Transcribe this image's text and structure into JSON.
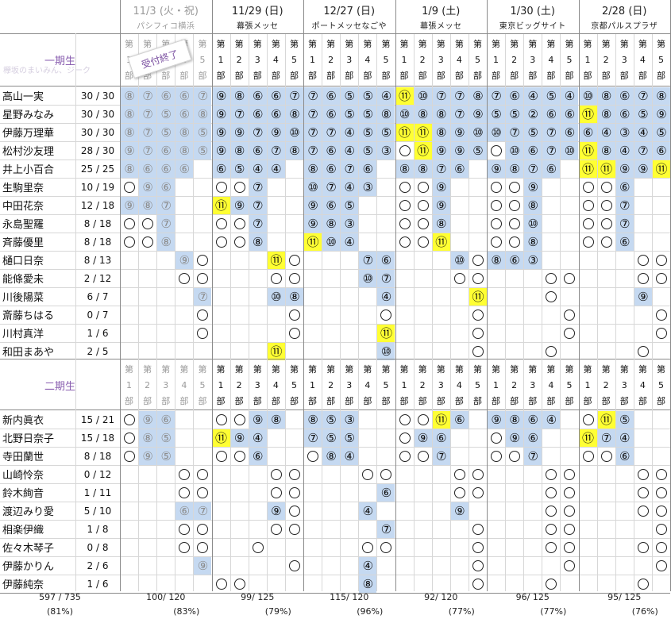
{
  "events": [
    {
      "date": "11/3 (火・祝)",
      "venue": "パシフィコ横浜",
      "past": true,
      "total": "100/ 120",
      "percent": "(83%)"
    },
    {
      "date": "11/29 (日)",
      "venue": "幕張メッセ",
      "past": false,
      "total": "99/ 125",
      "percent": "(79%)"
    },
    {
      "date": "12/27 (日)",
      "venue": "ポートメッセなごや",
      "past": false,
      "total": "115/ 120",
      "percent": "(96%)"
    },
    {
      "date": "1/9 (土)",
      "venue": "幕張メッセ",
      "past": false,
      "total": "92/ 120",
      "percent": "(77%)"
    },
    {
      "date": "1/30 (土)",
      "venue": "東京ビッグサイト",
      "past": false,
      "total": "96/ 125",
      "percent": "(77%)"
    },
    {
      "date": "2/28 (日)",
      "venue": "京都パルスプラザ",
      "past": false,
      "total": "95/ 125",
      "percent": "(76%)"
    }
  ],
  "part_label": {
    "top": "第",
    "bottom": "部"
  },
  "part_numbers": [
    "1",
    "2",
    "3",
    "4",
    "5"
  ],
  "stamp": "受付終了",
  "watermark": "欅坂のまいみん、ジーク",
  "grand_total": {
    "value": "597 / 735",
    "percent": "(81%)"
  },
  "groups": [
    {
      "label": "一期生",
      "members": [
        {
          "name": "高山一実",
          "count": "30 / 30",
          "cells": [
            "8b",
            "7b",
            "6b",
            "6b",
            "7b",
            "9b",
            "8b",
            "6b",
            "6b",
            "7b",
            "7b",
            "6b",
            "5b",
            "5b",
            "4b",
            "11y",
            "10b",
            "7b",
            "7b",
            "8b",
            "7b",
            "6b",
            "4b",
            "5b",
            "4b",
            "10b",
            "8b",
            "6b",
            "7b",
            "8b"
          ]
        },
        {
          "name": "星野みなみ",
          "count": "30 / 30",
          "cells": [
            "8b",
            "7b",
            "5b",
            "6b",
            "8b",
            "9b",
            "7b",
            "6b",
            "6b",
            "8b",
            "7b",
            "6b",
            "5b",
            "5b",
            "8b",
            "10b",
            "8b",
            "8b",
            "7b",
            "9b",
            "5b",
            "5b",
            "2b",
            "6b",
            "6b",
            "11y",
            "8b",
            "6b",
            "5b",
            "9b"
          ]
        },
        {
          "name": "伊藤万理華",
          "count": "30 / 30",
          "cells": [
            "8b",
            "7b",
            "5b",
            "8b",
            "5b",
            "9b",
            "9b",
            "7b",
            "9b",
            "10b",
            "7b",
            "7b",
            "4b",
            "5b",
            "5b",
            "11y",
            "11y",
            "8b",
            "9b",
            "10b",
            "10b",
            "7b",
            "5b",
            "7b",
            "6b",
            "6b",
            "4b",
            "3b",
            "4b",
            "5b"
          ]
        },
        {
          "name": "松村沙友理",
          "count": "28 / 30",
          "cells": [
            "9b",
            "7b",
            "6b",
            "8b",
            "5b",
            "9b",
            "8b",
            "6b",
            "7b",
            "8b",
            "7b",
            "6b",
            "4b",
            "5b",
            "3b",
            "o",
            "11y",
            "9b",
            "9b",
            "5b",
            "o",
            "10b",
            "6b",
            "7b",
            "10b",
            "11y",
            "8b",
            "4b",
            "7b",
            "6b"
          ]
        },
        {
          "name": "井上小百合",
          "count": "25 / 25",
          "cells": [
            "8b",
            "6b",
            "6b",
            "6b",
            "",
            "6b",
            "5b",
            "4b",
            "4b",
            "",
            "8b",
            "6b",
            "7b",
            "6b",
            "",
            "8b",
            "8b",
            "7b",
            "6b",
            "",
            "9b",
            "8b",
            "7b",
            "6b",
            "",
            "11y",
            "11y",
            "9b",
            "9b",
            "11y"
          ]
        },
        {
          "name": "生駒里奈",
          "count": "10 / 19",
          "cells": [
            "o",
            "9b",
            "6b",
            "",
            "",
            "o",
            "o",
            "7b",
            "",
            "",
            "10b",
            "7b",
            "4b",
            "3b",
            "",
            "o",
            "o",
            "9b",
            "",
            "",
            "o",
            "o",
            "9b",
            "",
            "",
            "o",
            "o",
            "6b",
            "",
            ""
          ]
        },
        {
          "name": "中田花奈",
          "count": "12 / 18",
          "cells": [
            "9b",
            "8b",
            "7b",
            "",
            "",
            "11y",
            "9b",
            "7b",
            "",
            "",
            "9b",
            "6b",
            "5b",
            "",
            "",
            "o",
            "o",
            "9b",
            "",
            "",
            "o",
            "o",
            "8b",
            "",
            "",
            "o",
            "o",
            "7b",
            "",
            ""
          ]
        },
        {
          "name": "永島聖羅",
          "count": "8 / 18",
          "cells": [
            "o",
            "o",
            "7b",
            "",
            "",
            "o",
            "o",
            "7b",
            "",
            "",
            "9b",
            "8b",
            "3b",
            "",
            "",
            "o",
            "o",
            "8b",
            "",
            "",
            "o",
            "o",
            "10b",
            "",
            "",
            "o",
            "o",
            "7b",
            "",
            ""
          ]
        },
        {
          "name": "斉藤優里",
          "count": "8 / 18",
          "cells": [
            "o",
            "o",
            "8b",
            "",
            "",
            "o",
            "o",
            "8b",
            "",
            "",
            "11y",
            "10b",
            "4b",
            "",
            "",
            "o",
            "o",
            "11y",
            "",
            "",
            "o",
            "o",
            "8b",
            "",
            "",
            "o",
            "o",
            "6b",
            "",
            ""
          ]
        },
        {
          "name": "樋口日奈",
          "count": "8 / 13",
          "cells": [
            "",
            "",
            "",
            "9b",
            "o",
            "",
            "",
            "",
            "11y",
            "o",
            "",
            "",
            "",
            "7b",
            "6b",
            "",
            "",
            "",
            "10b",
            "o",
            "8b",
            "6b",
            "3b",
            "",
            "",
            "",
            "",
            "",
            "o",
            "o"
          ]
        },
        {
          "name": "能條愛未",
          "count": "2 / 12",
          "cells": [
            "",
            "",
            "",
            "o",
            "o",
            "",
            "",
            "",
            "o",
            "o",
            "",
            "",
            "",
            "10b",
            "7b",
            "",
            "",
            "",
            "o",
            "o",
            "",
            "",
            "",
            "o",
            "o",
            "",
            "",
            "",
            "o",
            "o"
          ]
        },
        {
          "name": "川後陽菜",
          "count": "6 / 7",
          "cells": [
            "",
            "",
            "",
            "",
            "7b",
            "",
            "",
            "",
            "10b",
            "8b",
            "",
            "",
            "",
            "",
            "4b",
            "",
            "",
            "",
            "",
            "11y",
            "",
            "",
            "",
            "o",
            "",
            "",
            "",
            "",
            "9b",
            ""
          ]
        },
        {
          "name": "斎藤ちはる",
          "count": "0 / 7",
          "cells": [
            "",
            "",
            "",
            "",
            "o",
            "",
            "",
            "",
            "",
            "o",
            "",
            "",
            "",
            "",
            "o",
            "",
            "",
            "",
            "",
            "o",
            "",
            "",
            "",
            "",
            "o",
            "",
            "",
            "",
            "",
            "o"
          ]
        },
        {
          "name": "川村真洋",
          "count": "1 / 6",
          "cells": [
            "",
            "",
            "",
            "",
            "o",
            "",
            "",
            "",
            "",
            "o",
            "",
            "",
            "",
            "",
            "11y",
            "",
            "",
            "",
            "",
            "o",
            "",
            "",
            "",
            "",
            "o",
            "",
            "",
            "",
            "",
            "o"
          ]
        },
        {
          "name": "和田まあや",
          "count": "2 / 5",
          "cells": [
            "",
            "",
            "",
            "",
            "",
            "",
            "",
            "",
            "11y",
            "",
            "",
            "",
            "",
            "",
            "10b",
            "",
            "",
            "",
            "",
            "o",
            "",
            "",
            "",
            "o",
            "",
            "",
            "",
            "",
            "o",
            ""
          ]
        }
      ]
    },
    {
      "label": "二期生",
      "members": [
        {
          "name": "新内眞衣",
          "count": "15 / 21",
          "cells": [
            "o",
            "9b",
            "6b",
            "",
            "",
            "o",
            "o",
            "9b",
            "8b",
            "",
            "8b",
            "5b",
            "3b",
            "",
            "",
            "o",
            "o",
            "11y",
            "6b",
            "",
            "9b",
            "8b",
            "6b",
            "4b",
            "",
            "o",
            "11y",
            "5b",
            "",
            ""
          ]
        },
        {
          "name": "北野日奈子",
          "count": "15 / 18",
          "cells": [
            "o",
            "8b",
            "5b",
            "",
            "",
            "11y",
            "9b",
            "4b",
            "",
            "",
            "7b",
            "5b",
            "5b",
            "",
            "",
            "o",
            "9b",
            "6b",
            "",
            "",
            "o",
            "9b",
            "6b",
            "",
            "",
            "11y",
            "7b",
            "4b",
            "",
            ""
          ]
        },
        {
          "name": "寺田蘭世",
          "count": "8 / 18",
          "cells": [
            "o",
            "9b",
            "5b",
            "",
            "",
            "o",
            "o",
            "6b",
            "",
            "",
            "o",
            "8b",
            "4b",
            "",
            "",
            "o",
            "o",
            "7b",
            "",
            "",
            "o",
            "o",
            "7b",
            "",
            "",
            "o",
            "o",
            "6b",
            "",
            ""
          ]
        },
        {
          "name": "山崎怜奈",
          "count": "0 / 12",
          "cells": [
            "",
            "",
            "",
            "o",
            "o",
            "",
            "",
            "",
            "o",
            "o",
            "",
            "",
            "",
            "o",
            "o",
            "",
            "",
            "",
            "o",
            "o",
            "",
            "",
            "",
            "o",
            "o",
            "",
            "",
            "",
            "o",
            "o"
          ]
        },
        {
          "name": "鈴木絢音",
          "count": "1 / 11",
          "cells": [
            "",
            "",
            "",
            "o",
            "o",
            "",
            "",
            "",
            "o",
            "o",
            "",
            "",
            "",
            "",
            "6b",
            "",
            "",
            "",
            "o",
            "o",
            "",
            "",
            "",
            "o",
            "o",
            "",
            "",
            "",
            "o",
            "o"
          ]
        },
        {
          "name": "渡辺みり愛",
          "count": "5 / 10",
          "cells": [
            "",
            "",
            "",
            "6b",
            "7b",
            "",
            "",
            "",
            "9b",
            "o",
            "",
            "",
            "",
            "4b",
            "",
            "",
            "",
            "",
            "9b",
            "",
            "",
            "",
            "",
            "o",
            "o",
            "",
            "",
            "",
            "o",
            "o"
          ]
        },
        {
          "name": "相楽伊織",
          "count": "1 / 8",
          "cells": [
            "",
            "",
            "",
            "o",
            "o",
            "",
            "",
            "",
            "o",
            "o",
            "",
            "",
            "",
            "",
            "7b",
            "",
            "",
            "",
            "",
            "o",
            "",
            "",
            "",
            "o",
            "o",
            "",
            "",
            "",
            "",
            "o"
          ]
        },
        {
          "name": "佐々木琴子",
          "count": "0 / 8",
          "cells": [
            "",
            "",
            "",
            "o",
            "o",
            "",
            "",
            "o",
            "",
            "",
            "",
            "",
            "",
            "o",
            "o",
            "",
            "",
            "",
            "",
            "o",
            "",
            "",
            "",
            "o",
            "o",
            "",
            "",
            "",
            "o",
            "o"
          ]
        },
        {
          "name": "伊藤かりん",
          "count": "2 / 6",
          "cells": [
            "",
            "",
            "",
            "",
            "9b",
            "",
            "",
            "",
            "",
            "o",
            "",
            "",
            "",
            "4b",
            "",
            "",
            "",
            "",
            "",
            "o",
            "",
            "",
            "",
            "",
            "o",
            "",
            "",
            "",
            "",
            "o"
          ]
        },
        {
          "name": "伊藤純奈",
          "count": "1 / 6",
          "cells": [
            "",
            "",
            "",
            "",
            "",
            "o",
            "o",
            "",
            "",
            "",
            "",
            "",
            "",
            "8b",
            "",
            "",
            "",
            "",
            "",
            "o",
            "",
            "",
            "",
            "o",
            "",
            "",
            "",
            "",
            "o",
            ""
          ]
        }
      ]
    }
  ]
}
